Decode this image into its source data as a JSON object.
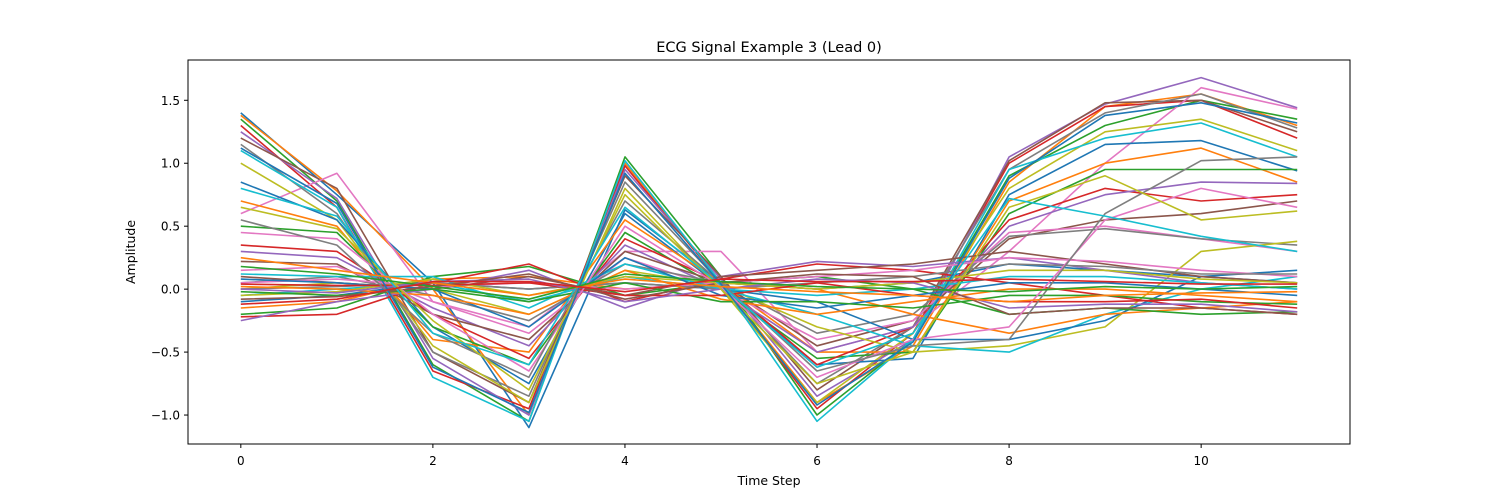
{
  "chart_data": {
    "type": "line",
    "title": "ECG Signal Example 3 (Lead 0)",
    "xlabel": "Time Step",
    "ylabel": "Amplitude",
    "xlim": [
      -0.55,
      11.55
    ],
    "ylim": [
      -1.23,
      1.82
    ],
    "xticks": [
      0,
      2,
      4,
      6,
      8,
      10
    ],
    "xtick_labels": [
      "0",
      "2",
      "4",
      "6",
      "8",
      "10"
    ],
    "yticks": [
      -1.0,
      -0.5,
      0.0,
      0.5,
      1.0,
      1.5
    ],
    "ytick_labels": [
      "−1.0",
      "−0.5",
      "0.0",
      "0.5",
      "1.0",
      "1.5"
    ],
    "grid": false,
    "legend": "none",
    "x": [
      0,
      1,
      2,
      3,
      4,
      5,
      6,
      7,
      8,
      9,
      10,
      11
    ],
    "colors": [
      "#1f77b4",
      "#ff7f0e",
      "#2ca02c",
      "#d62728",
      "#9467bd",
      "#8c564b",
      "#e377c2",
      "#7f7f7f",
      "#bcbd22",
      "#17becf"
    ],
    "series": [
      {
        "values": [
          1.4,
          0.75,
          0.05,
          -1.1,
          0.63,
          0.05,
          0.0,
          0.05,
          0.2,
          0.15,
          0.1,
          0.05
        ]
      },
      {
        "values": [
          1.38,
          0.78,
          0.0,
          -1.0,
          1.0,
          0.05,
          -0.9,
          -0.45,
          0.85,
          1.45,
          1.55,
          1.3
        ]
      },
      {
        "values": [
          1.35,
          0.7,
          -0.6,
          -1.05,
          1.05,
          0.1,
          -1.0,
          -0.4,
          0.9,
          1.3,
          1.5,
          1.35
        ]
      },
      {
        "values": [
          1.3,
          0.65,
          -0.65,
          -0.95,
          0.98,
          0.05,
          -0.95,
          -0.35,
          1.0,
          1.45,
          1.5,
          1.2
        ]
      },
      {
        "values": [
          1.25,
          0.72,
          -0.55,
          -1.0,
          0.95,
          0.08,
          -0.85,
          -0.4,
          1.05,
          1.47,
          1.68,
          1.44
        ]
      },
      {
        "values": [
          1.2,
          0.8,
          -0.5,
          -0.9,
          0.9,
          0.1,
          -0.8,
          -0.3,
          1.02,
          1.48,
          1.5,
          1.25
        ]
      },
      {
        "values": [
          0.6,
          0.92,
          -0.1,
          -0.3,
          0.3,
          0.3,
          -0.5,
          -0.3,
          0.3,
          1.0,
          1.6,
          1.43
        ]
      },
      {
        "values": [
          1.15,
          0.6,
          -0.5,
          -0.85,
          0.85,
          0.05,
          -0.75,
          -0.3,
          0.95,
          1.4,
          1.55,
          1.28
        ]
      },
      {
        "values": [
          1.0,
          0.55,
          -0.45,
          -0.9,
          0.8,
          0.0,
          -0.9,
          -0.35,
          0.8,
          1.25,
          1.35,
          1.1
        ]
      },
      {
        "values": [
          1.1,
          0.65,
          -0.7,
          -1.05,
          1.02,
          0.05,
          -1.05,
          -0.4,
          0.95,
          1.2,
          1.32,
          1.05
        ]
      },
      {
        "values": [
          0.85,
          0.55,
          -0.3,
          -0.75,
          0.6,
          0.02,
          -0.6,
          -0.55,
          0.75,
          1.15,
          1.18,
          0.94
        ]
      },
      {
        "values": [
          0.7,
          0.5,
          -0.4,
          -0.5,
          0.55,
          0.05,
          -0.5,
          -0.5,
          0.7,
          1.0,
          1.12,
          0.85
        ]
      },
      {
        "values": [
          0.5,
          0.45,
          -0.3,
          -0.6,
          0.45,
          0.0,
          -0.55,
          -0.5,
          0.6,
          0.95,
          0.95,
          0.95
        ]
      },
      {
        "values": [
          0.35,
          0.3,
          -0.2,
          -0.55,
          0.4,
          0.05,
          -0.6,
          -0.3,
          0.55,
          0.8,
          0.7,
          0.75
        ]
      },
      {
        "values": [
          0.3,
          0.25,
          -0.15,
          -0.45,
          0.35,
          0.0,
          -0.5,
          -0.3,
          0.5,
          0.75,
          0.85,
          0.84
        ]
      },
      {
        "values": [
          0.22,
          0.2,
          -0.2,
          -0.4,
          0.3,
          0.05,
          -0.45,
          -0.25,
          0.4,
          0.55,
          0.6,
          0.7
        ]
      },
      {
        "values": [
          0.15,
          0.18,
          -0.1,
          -0.35,
          0.25,
          0.0,
          -0.4,
          -0.25,
          0.45,
          0.5,
          0.4,
          0.3
        ]
      },
      {
        "values": [
          0.05,
          0.1,
          -0.05,
          -0.25,
          0.2,
          0.05,
          -0.35,
          -0.2,
          0.42,
          0.48,
          0.4,
          0.35
        ]
      },
      {
        "values": [
          0.0,
          0.05,
          0.0,
          -0.2,
          0.15,
          0.03,
          -0.3,
          -0.5,
          -0.45,
          -0.3,
          0.3,
          0.38
        ]
      },
      {
        "values": [
          -0.05,
          0.0,
          0.05,
          -0.1,
          0.1,
          0.0,
          -0.2,
          -0.45,
          -0.5,
          -0.2,
          0.0,
          0.1
        ]
      },
      {
        "values": [
          -0.1,
          -0.05,
          0.05,
          0.0,
          0.05,
          0.0,
          -0.1,
          -0.4,
          -0.4,
          -0.25,
          0.1,
          0.15
        ]
      },
      {
        "values": [
          -0.15,
          -0.1,
          0.08,
          0.1,
          0.0,
          0.05,
          0.0,
          -0.2,
          -0.35,
          -0.2,
          -0.15,
          -0.1
        ]
      },
      {
        "values": [
          -0.2,
          -0.15,
          0.1,
          0.18,
          -0.05,
          0.05,
          0.1,
          0.0,
          -0.2,
          -0.15,
          -0.2,
          -0.18
        ]
      },
      {
        "values": [
          -0.22,
          -0.2,
          0.05,
          0.2,
          -0.1,
          0.08,
          0.2,
          0.15,
          0.05,
          -0.05,
          -0.15,
          -0.2
        ]
      },
      {
        "values": [
          -0.25,
          -0.1,
          0.0,
          0.15,
          -0.15,
          0.1,
          0.22,
          0.18,
          0.25,
          0.15,
          0.05,
          0.0
        ]
      },
      {
        "values": [
          0.1,
          0.05,
          0.0,
          0.1,
          -0.05,
          0.1,
          0.15,
          0.2,
          0.3,
          0.2,
          0.1,
          0.05
        ]
      },
      {
        "values": [
          0.05,
          0.08,
          0.02,
          0.05,
          0.0,
          0.05,
          0.1,
          0.15,
          0.25,
          0.22,
          0.15,
          0.1
        ]
      },
      {
        "values": [
          0.0,
          0.02,
          0.05,
          0.0,
          0.05,
          0.0,
          0.05,
          0.1,
          0.2,
          0.18,
          0.12,
          0.12
        ]
      },
      {
        "values": [
          -0.05,
          -0.02,
          0.08,
          -0.05,
          0.1,
          0.05,
          0.0,
          0.05,
          0.15,
          0.15,
          0.08,
          0.05
        ]
      },
      {
        "values": [
          0.12,
          0.1,
          0.1,
          -0.15,
          0.2,
          0.0,
          -0.05,
          0.0,
          0.1,
          0.1,
          0.05,
          0.0
        ]
      },
      {
        "values": [
          0.08,
          0.05,
          0.0,
          -0.3,
          0.25,
          -0.05,
          -0.15,
          -0.05,
          0.05,
          0.05,
          0.0,
          -0.05
        ]
      },
      {
        "values": [
          0.02,
          0.0,
          -0.05,
          -0.2,
          0.15,
          -0.08,
          -0.2,
          -0.1,
          0.0,
          0.0,
          -0.05,
          -0.1
        ]
      },
      {
        "values": [
          -0.02,
          -0.05,
          0.0,
          -0.1,
          0.05,
          -0.1,
          -0.1,
          -0.15,
          -0.05,
          -0.05,
          -0.1,
          -0.12
        ]
      },
      {
        "values": [
          0.04,
          0.03,
          0.03,
          0.05,
          -0.05,
          -0.05,
          0.05,
          -0.05,
          -0.1,
          -0.1,
          -0.08,
          -0.15
        ]
      },
      {
        "values": [
          0.0,
          -0.03,
          0.06,
          0.08,
          -0.1,
          0.0,
          0.08,
          0.05,
          -0.15,
          -0.12,
          -0.12,
          -0.18
        ]
      },
      {
        "values": [
          -0.08,
          -0.06,
          0.02,
          0.12,
          -0.08,
          0.05,
          0.12,
          0.1,
          -0.2,
          -0.15,
          -0.15,
          -0.2
        ]
      },
      {
        "values": [
          0.45,
          0.4,
          -0.2,
          -0.65,
          0.5,
          0.02,
          -0.7,
          -0.4,
          -0.3,
          0.55,
          0.8,
          0.65
        ]
      },
      {
        "values": [
          0.55,
          0.35,
          -0.35,
          -0.7,
          0.7,
          0.05,
          -0.65,
          -0.45,
          -0.4,
          0.6,
          1.02,
          1.05
        ]
      },
      {
        "values": [
          0.65,
          0.48,
          -0.25,
          -0.8,
          0.75,
          0.0,
          -0.75,
          -0.5,
          0.65,
          0.9,
          0.55,
          0.62
        ]
      },
      {
        "values": [
          0.8,
          0.58,
          -0.35,
          -0.6,
          0.65,
          0.03,
          -0.62,
          -0.35,
          0.72,
          0.58,
          0.42,
          0.3
        ]
      },
      {
        "values": [
          1.12,
          0.68,
          -0.62,
          -0.98,
          0.92,
          0.04,
          -0.92,
          -0.42,
          0.88,
          1.38,
          1.48,
          1.32
        ]
      },
      {
        "values": [
          0.25,
          0.15,
          0.05,
          -0.05,
          0.08,
          0.02,
          -0.02,
          -0.05,
          -0.1,
          -0.05,
          -0.03,
          -0.02
        ]
      },
      {
        "values": [
          0.18,
          0.12,
          0.02,
          -0.08,
          0.12,
          0.06,
          0.02,
          0.0,
          -0.02,
          0.02,
          0.0,
          0.02
        ]
      },
      {
        "values": [
          -0.12,
          -0.08,
          0.06,
          0.06,
          -0.02,
          0.08,
          0.06,
          0.06,
          0.08,
          0.06,
          0.04,
          0.04
        ]
      }
    ]
  }
}
